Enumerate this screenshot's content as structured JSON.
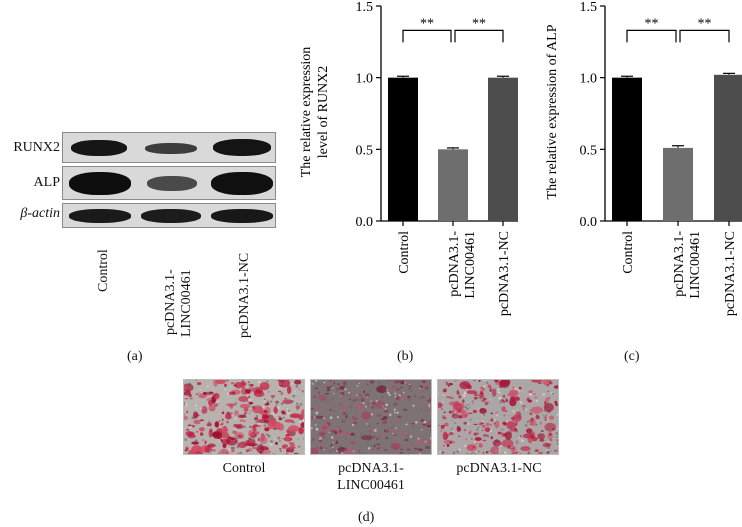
{
  "panels": {
    "a_label": "(a)",
    "b_label": "(b)",
    "c_label": "(c)",
    "d_label": "(d)"
  },
  "blot": {
    "proteins": [
      "RUNX2",
      "ALP",
      "β-actin"
    ],
    "lanes": [
      "Control",
      "pcDNA3.1-\nLINC00461",
      "pcDNA3.1-NC"
    ]
  },
  "chart_data": [
    {
      "type": "bar",
      "categories": [
        "Control",
        "pcDNA3.1-\nLINC00461",
        "pcDNA3.1-NC"
      ],
      "values": [
        1.0,
        0.5,
        1.0
      ],
      "errors": [
        0.01,
        0.01,
        0.01
      ],
      "colors": [
        "#000000",
        "#6e6e6e",
        "#4d4d4d"
      ],
      "ylabel": "The relative expression\nlevel of RUNX2",
      "ylim": [
        0,
        1.5
      ],
      "yticks": [
        "0.0",
        "0.5",
        "1.0",
        "1.5"
      ],
      "significance": [
        {
          "from": 0,
          "to": 1,
          "label": "**"
        },
        {
          "from": 1,
          "to": 2,
          "label": "**"
        }
      ]
    },
    {
      "type": "bar",
      "categories": [
        "Control",
        "pcDNA3.1-\nLINC00461",
        "pcDNA3.1-NC"
      ],
      "values": [
        1.0,
        0.51,
        1.02
      ],
      "errors": [
        0.01,
        0.015,
        0.01
      ],
      "colors": [
        "#000000",
        "#6e6e6e",
        "#4d4d4d"
      ],
      "ylabel": "The relative expression of ALP",
      "ylim": [
        0,
        1.5
      ],
      "yticks": [
        "0.0",
        "0.5",
        "1.0",
        "1.5"
      ],
      "significance": [
        {
          "from": 0,
          "to": 1,
          "label": "**"
        },
        {
          "from": 1,
          "to": 2,
          "label": "**"
        }
      ]
    }
  ],
  "staining": {
    "labels": [
      "Control",
      "pcDNA3.1-\nLINC00461",
      "pcDNA3.1-NC"
    ]
  }
}
